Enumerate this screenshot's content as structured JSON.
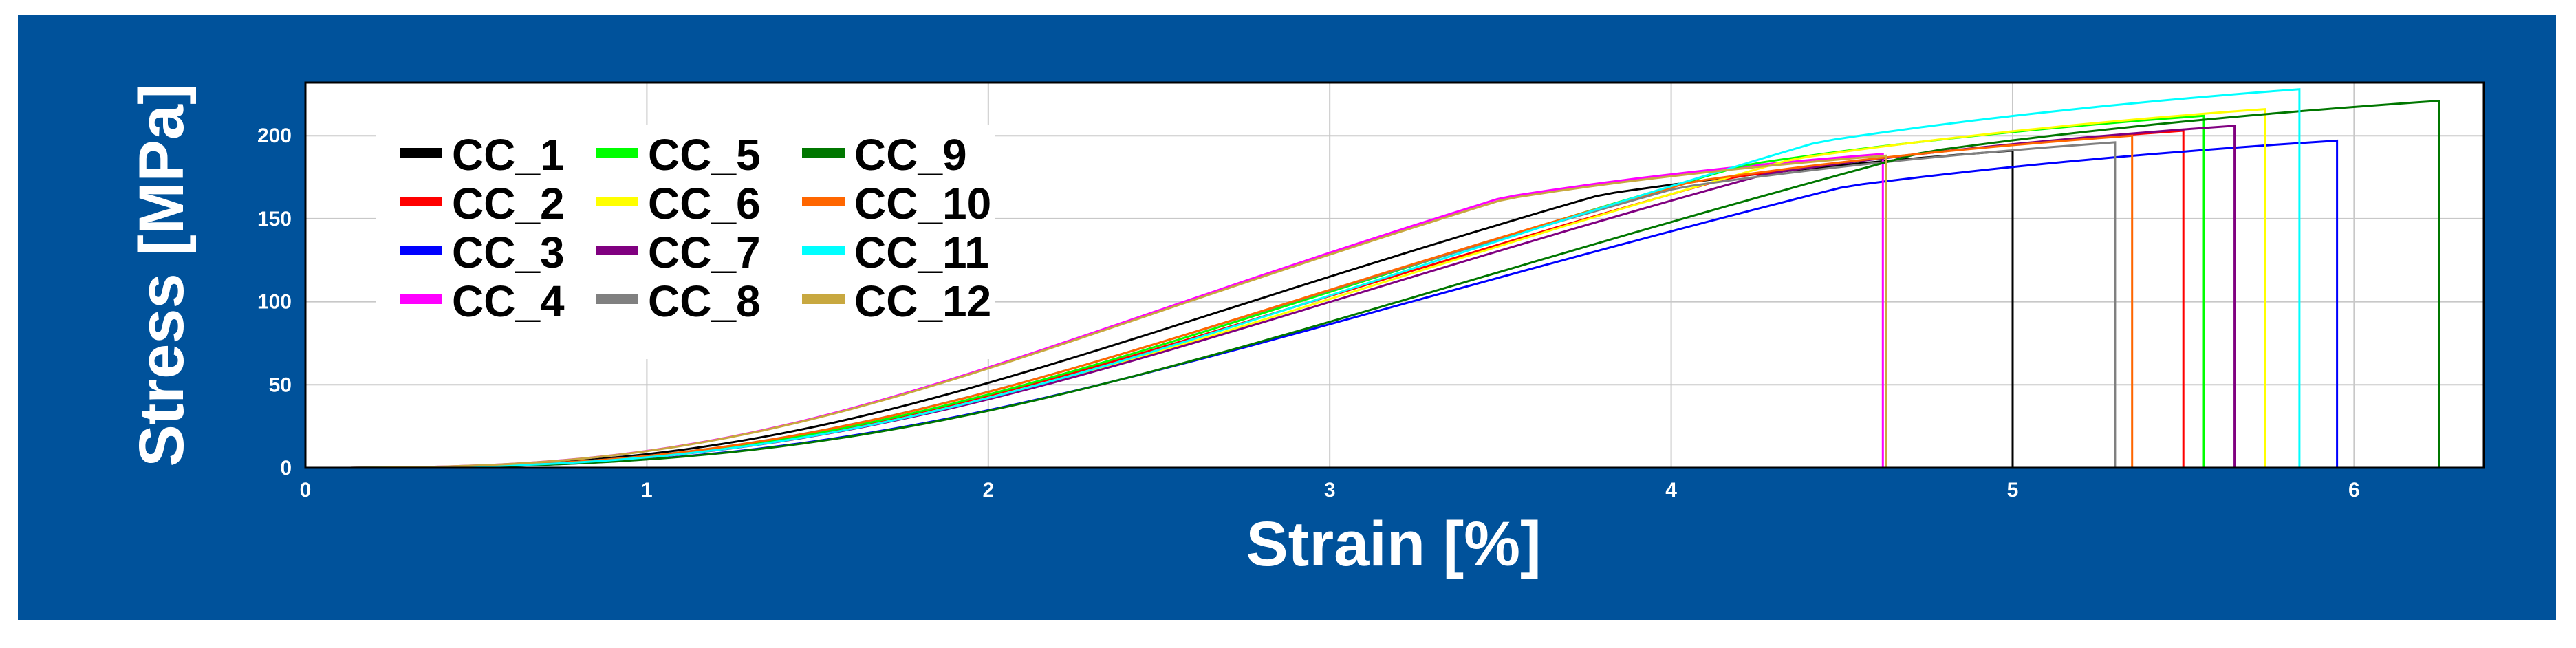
{
  "colors": {
    "background": "#00529b",
    "plot_background": "#ffffff",
    "grid": "#c8c8c8",
    "text": "#ffffff"
  },
  "chart_data": {
    "type": "line",
    "xlabel": "Strain [%]",
    "ylabel": "Stress [MPa]",
    "xlim": [
      0,
      6.38
    ],
    "ylim": [
      0,
      232
    ],
    "xticks": [
      0,
      1,
      2,
      3,
      4,
      5,
      6
    ],
    "yticks": [
      0,
      50,
      100,
      150,
      200
    ],
    "grid": true,
    "legend_position": "upper-left",
    "series": [
      {
        "name": "CC_1",
        "color": "#000000",
        "fail_strain": 5.0,
        "max_stress": 191
      },
      {
        "name": "CC_2",
        "color": "#ff0000",
        "fail_strain": 5.5,
        "max_stress": 203
      },
      {
        "name": "CC_3",
        "color": "#0000ff",
        "fail_strain": 5.95,
        "max_stress": 197
      },
      {
        "name": "CC_4",
        "color": "#ff00ff",
        "fail_strain": 4.62,
        "max_stress": 189
      },
      {
        "name": "CC_5",
        "color": "#00ff00",
        "fail_strain": 5.56,
        "max_stress": 212
      },
      {
        "name": "CC_6",
        "color": "#ffff00",
        "fail_strain": 5.74,
        "max_stress": 216
      },
      {
        "name": "CC_7",
        "color": "#800080",
        "fail_strain": 5.65,
        "max_stress": 206
      },
      {
        "name": "CC_8",
        "color": "#808080",
        "fail_strain": 5.3,
        "max_stress": 196
      },
      {
        "name": "CC_9",
        "color": "#007700",
        "fail_strain": 6.25,
        "max_stress": 221
      },
      {
        "name": "CC_10",
        "color": "#ff6600",
        "fail_strain": 5.35,
        "max_stress": 200
      },
      {
        "name": "CC_11",
        "color": "#00ffff",
        "fail_strain": 5.84,
        "max_stress": 228
      },
      {
        "name": "CC_12",
        "color": "#c8a840",
        "fail_strain": 4.63,
        "max_stress": 188
      }
    ]
  }
}
